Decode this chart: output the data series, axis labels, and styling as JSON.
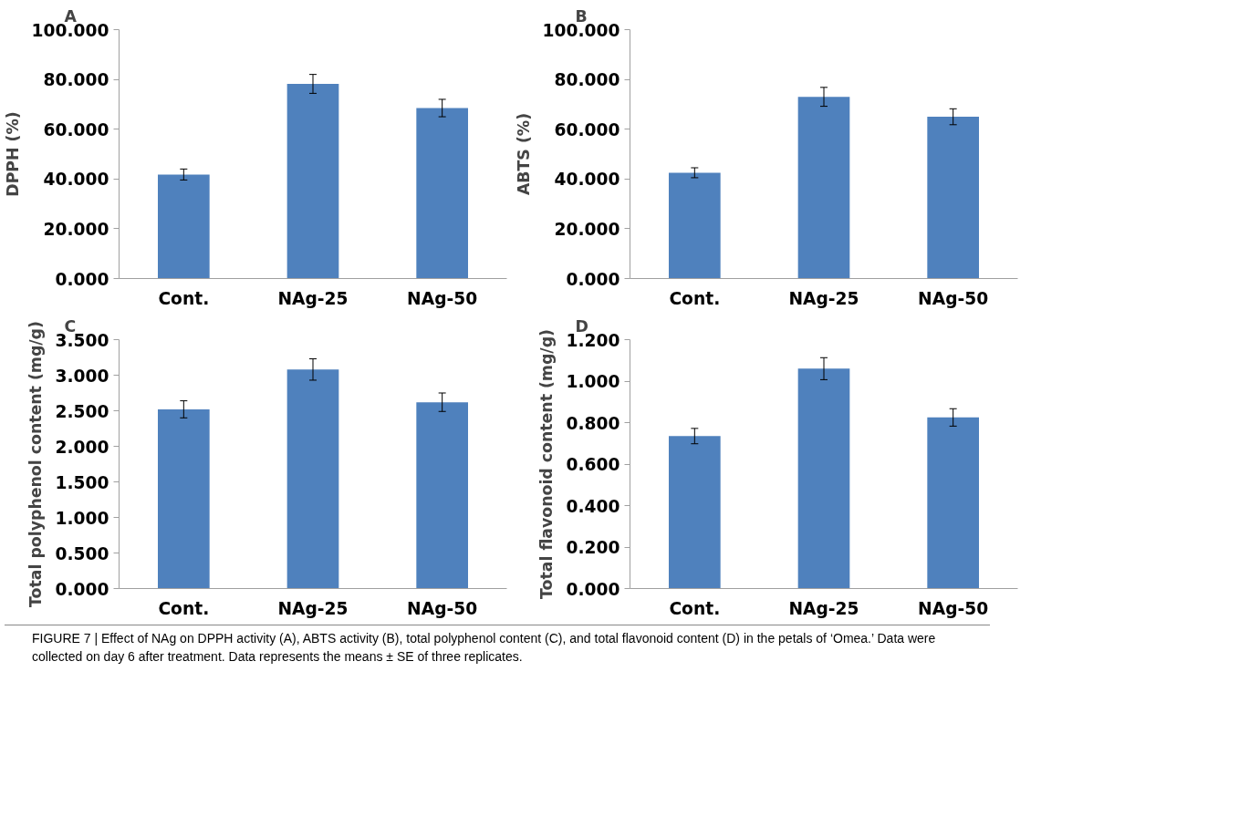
{
  "chart_data": [
    {
      "type": "bar",
      "title": "A",
      "categories": [
        "Cont.",
        "NAg-25",
        "NAg-50"
      ],
      "values": [
        41.8,
        78.2,
        68.5
      ],
      "errors": [
        2.2,
        3.8,
        3.5
      ],
      "color": "#4f81bd",
      "ylabel": "DPPH (%)",
      "ylim": [
        0,
        100
      ],
      "yticks": [
        {
          "value": 0,
          "label": "0.000"
        },
        {
          "value": 20,
          "label": "20.000"
        },
        {
          "value": 40,
          "label": "40.000"
        },
        {
          "value": 60,
          "label": "60.000"
        },
        {
          "value": 80,
          "label": "80.000"
        },
        {
          "value": 100,
          "label": "100.000"
        }
      ],
      "grid": false
    },
    {
      "type": "bar",
      "title": "B",
      "categories": [
        "Cont.",
        "NAg-25",
        "NAg-50"
      ],
      "values": [
        42.5,
        73.0,
        65.0
      ],
      "errors": [
        2.0,
        3.8,
        3.2
      ],
      "color": "#4f81bd",
      "ylabel": "ABTS (%)",
      "ylim": [
        0,
        100
      ],
      "yticks": [
        {
          "value": 0,
          "label": "0.000"
        },
        {
          "value": 20,
          "label": "20.000"
        },
        {
          "value": 40,
          "label": "40.000"
        },
        {
          "value": 60,
          "label": "60.000"
        },
        {
          "value": 80,
          "label": "80.000"
        },
        {
          "value": 100,
          "label": "100.000"
        }
      ],
      "grid": false
    },
    {
      "type": "bar",
      "title": "C",
      "categories": [
        "Cont.",
        "NAg-25",
        "NAg-50"
      ],
      "values": [
        2.52,
        3.08,
        2.62
      ],
      "errors": [
        0.12,
        0.15,
        0.13
      ],
      "color": "#4f81bd",
      "ylabel": "Total polyphenol content (mg/g)",
      "ylim": [
        0,
        3.5
      ],
      "yticks": [
        {
          "value": 0,
          "label": "0.000"
        },
        {
          "value": 0.5,
          "label": "0.500"
        },
        {
          "value": 1,
          "label": "1.000"
        },
        {
          "value": 1.5,
          "label": "1.500"
        },
        {
          "value": 2,
          "label": "2.000"
        },
        {
          "value": 2.5,
          "label": "2.500"
        },
        {
          "value": 3,
          "label": "3.000"
        },
        {
          "value": 3.5,
          "label": "3.500"
        }
      ],
      "grid": false
    },
    {
      "type": "bar",
      "title": "D",
      "categories": [
        "Cont.",
        "NAg-25",
        "NAg-50"
      ],
      "values": [
        0.735,
        1.06,
        0.825
      ],
      "errors": [
        0.037,
        0.053,
        0.042
      ],
      "color": "#4f81bd",
      "ylabel": "Total flavonoid content (mg/g)",
      "ylim": [
        0,
        1.2
      ],
      "yticks": [
        {
          "value": 0,
          "label": "0.000"
        },
        {
          "value": 0.2,
          "label": "0.200"
        },
        {
          "value": 0.4,
          "label": "0.400"
        },
        {
          "value": 0.6,
          "label": "0.600"
        },
        {
          "value": 0.8,
          "label": "0.800"
        },
        {
          "value": 1,
          "label": "1.000"
        },
        {
          "value": 1.2,
          "label": "1.200"
        }
      ],
      "grid": false,
      "annotations": [
        "FIGURE 7 | Effect of NAg on DPPH activity (A), ABTS activity (B), total polyphenol content (C), and total flavonoid content (D) in the petals of ‘Omea.’ Data were collected on day 6 after treatment. Data represents the means ± SE of three replicates."
      ]
    }
  ]
}
